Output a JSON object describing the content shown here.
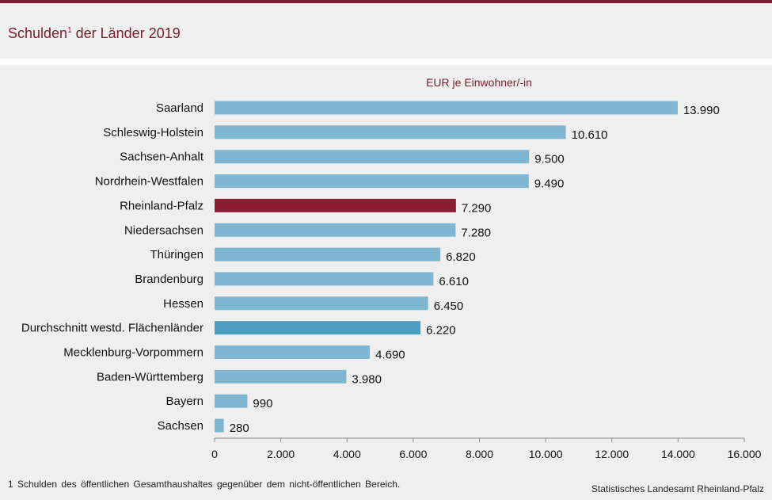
{
  "header": {
    "title": "Schulden",
    "title_sup": "1",
    "title_rest": " der Länder 2019"
  },
  "footnote": "1 Schulden des öffentlichen Gesamthaushaltes gegenüber dem nicht-öffentlichen Bereich.",
  "source": "Statistisches Landesamt Rheinland-Pfalz",
  "colors": {
    "default_bar": "#7fb6d1",
    "highlight_bar": "#8c1c32",
    "average_bar": "#4d9ec0",
    "accent": "#7a1d2e"
  },
  "chart_data": {
    "type": "bar",
    "orientation": "horizontal",
    "ylabel": "EUR je Einwohner/-in",
    "categories": [
      "Saarland",
      "Schleswig-Holstein",
      "Sachsen-Anhalt",
      "Nordrhein-Westfalen",
      "Rheinland-Pfalz",
      "Niedersachsen",
      "Thüringen",
      "Brandenburg",
      "Hessen",
      "Durchschnitt westd. Flächenländer",
      "Mecklenburg-Vorpommern",
      "Baden-Württemberg",
      "Bayern",
      "Sachsen"
    ],
    "values": [
      13990,
      10610,
      9500,
      9490,
      7290,
      7280,
      6820,
      6610,
      6450,
      6220,
      4690,
      3980,
      990,
      280
    ],
    "value_labels": [
      "13.990",
      "10.610",
      "9.500",
      "9.490",
      "7.290",
      "7.280",
      "6.820",
      "6.610",
      "6.450",
      "6.220",
      "4.690",
      "3.980",
      "990",
      "280"
    ],
    "highlight": "Rheinland-Pfalz",
    "average": "Durchschnitt westd. Flächenländer",
    "xlim": [
      0,
      16000
    ],
    "xticks": [
      0,
      2000,
      4000,
      6000,
      8000,
      10000,
      12000,
      14000,
      16000
    ],
    "xtick_labels": [
      "0",
      "2.000",
      "4.000",
      "6.000",
      "8.000",
      "10.000",
      "12.000",
      "14.000",
      "16.000"
    ],
    "grid": false,
    "legend": "none"
  }
}
